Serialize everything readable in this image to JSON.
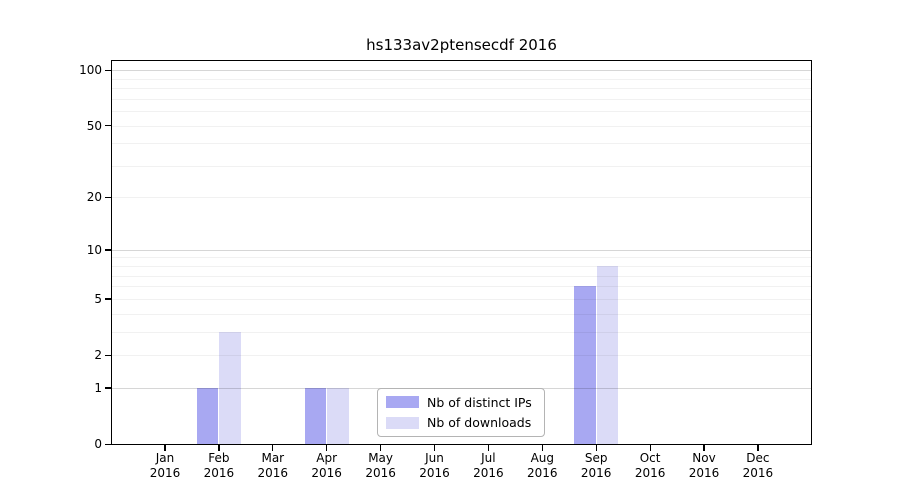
{
  "chart_data": {
    "type": "bar",
    "title": "hs133av2ptensecdf 2016",
    "categories": [
      "Jan",
      "Feb",
      "Mar",
      "Apr",
      "May",
      "Jun",
      "Jul",
      "Aug",
      "Sep",
      "Oct",
      "Nov",
      "Dec"
    ],
    "category_year": "2016",
    "series": [
      {
        "name": "Nb of distinct IPs",
        "color": "#a8a8f2",
        "values": [
          0,
          1,
          0,
          1,
          0,
          0,
          0,
          0,
          6,
          0,
          0,
          0
        ]
      },
      {
        "name": "Nb of downloads",
        "color": "#dbdbf7",
        "values": [
          0,
          3,
          0,
          1,
          0,
          0,
          0,
          0,
          8,
          0,
          0,
          0
        ]
      }
    ],
    "yticks": [
      0,
      1,
      2,
      5,
      10,
      20,
      50,
      100
    ],
    "grid_minor_values": [
      2,
      3,
      4,
      5,
      6,
      7,
      8,
      9,
      20,
      30,
      40,
      50,
      60,
      70,
      80,
      90
    ],
    "grid_major_values": [
      1,
      10,
      100
    ],
    "ylim": [
      0,
      113
    ],
    "scale": "log1p",
    "grid": "on",
    "legend_position": "bottom-center-inside",
    "xlabel": "",
    "ylabel": ""
  }
}
